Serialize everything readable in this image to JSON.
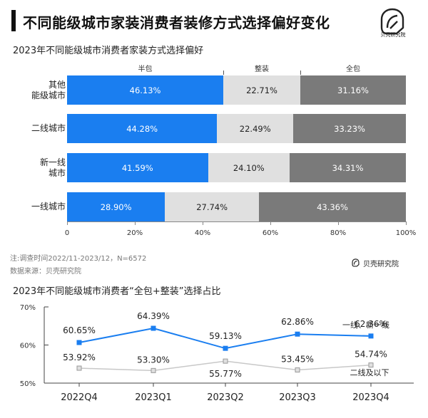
{
  "header": {
    "title": "不同能级城市家装消费者装修方式选择偏好变化",
    "logo_text": "贝壳研究院"
  },
  "colors": {
    "semi": "#1a7ef0",
    "whole": "#e0e0e0",
    "full": "#7a7a7a",
    "line_blue": "#1a7ef0",
    "line_gray": "#c8c8c8"
  },
  "notes": {
    "note": "注:调查时间2022/11-2023/12，N=6572",
    "source": "数据来源：贝壳研究院",
    "brand": "贝壳研究院"
  },
  "chart_data": [
    {
      "type": "bar",
      "orientation": "horizontal",
      "stacked": "100%",
      "title": "2023年不同能级城市消费者家装方式选择偏好",
      "categories": [
        "其他\n能级城市",
        "二线城市",
        "新一线\n城市",
        "一线城市"
      ],
      "series": [
        {
          "name": "半包",
          "values": [
            46.13,
            44.28,
            41.59,
            28.9
          ]
        },
        {
          "name": "整装",
          "values": [
            22.71,
            22.49,
            24.1,
            27.74
          ]
        },
        {
          "name": "全包",
          "values": [
            31.16,
            33.23,
            34.31,
            43.36
          ]
        }
      ],
      "data_labels": [
        [
          "46.13%",
          "22.71%",
          "31.16%"
        ],
        [
          "44.28%",
          "22.49%",
          "33.23%"
        ],
        [
          "41.59%",
          "24.10%",
          "34.31%"
        ],
        [
          "28.90%",
          "27.74%",
          "43.36%"
        ]
      ],
      "xlim": [
        0,
        100
      ],
      "x_ticks": [
        "0",
        "20%",
        "40%",
        "60%",
        "80%",
        "100%"
      ],
      "legend_position": "top"
    },
    {
      "type": "line",
      "title": "2023年不同能级城市消费者“全包+整装”选择占比",
      "categories": [
        "2022Q4",
        "2023Q1",
        "2023Q2",
        "2023Q3",
        "2023Q4"
      ],
      "series": [
        {
          "name": "一线、新一线",
          "values": [
            60.65,
            64.39,
            59.13,
            62.86,
            62.36
          ],
          "labels": [
            "60.65%",
            "64.39%",
            "59.13%",
            "62.86%",
            "62.36%"
          ]
        },
        {
          "name": "二线及以下",
          "values": [
            53.92,
            53.3,
            55.77,
            53.45,
            54.74
          ],
          "labels": [
            "53.92%",
            "53.30%",
            "55.77%",
            "53.45%",
            "54.74%"
          ]
        }
      ],
      "ylim": [
        50,
        70
      ],
      "y_ticks": [
        "50%",
        "60%",
        "70%"
      ],
      "grid": false
    }
  ]
}
